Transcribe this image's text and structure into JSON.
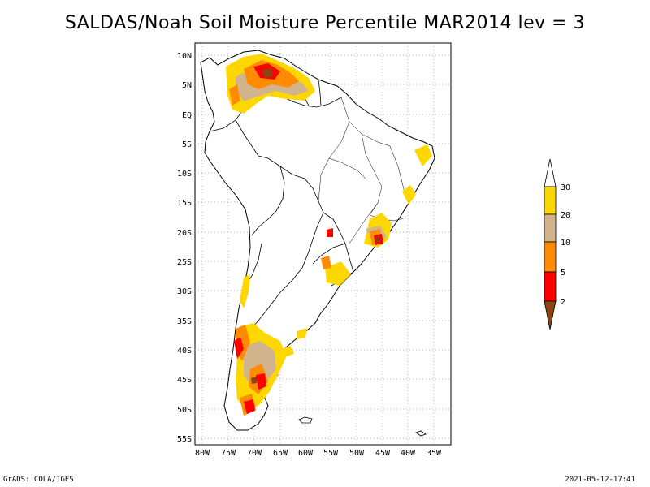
{
  "title": "SALDAS/Noah Soil Moisture Percentile MAR2014 lev = 3",
  "map": {
    "lat_labels": [
      "10N",
      "5N",
      "EQ",
      "5S",
      "10S",
      "15S",
      "20S",
      "25S",
      "30S",
      "35S",
      "40S",
      "45S",
      "50S",
      "55S"
    ],
    "lon_labels": [
      "80W",
      "75W",
      "70W",
      "65W",
      "60W",
      "55W",
      "50W",
      "45W",
      "40W",
      "35W"
    ],
    "grid_lines": "dotted"
  },
  "legend": {
    "labels": [
      "30",
      "20",
      "10",
      "5",
      "2"
    ],
    "colors": {
      "above30": "#ffffff",
      "c20_30": "#ffd700",
      "c10_20": "#d2b48c",
      "c5_10": "#ff8c00",
      "c2_5": "#ff0000",
      "below2": "#8b4513"
    }
  },
  "footer": {
    "left": "GrADS: COLA/IGES",
    "right": "2021-05-12-17:41"
  }
}
